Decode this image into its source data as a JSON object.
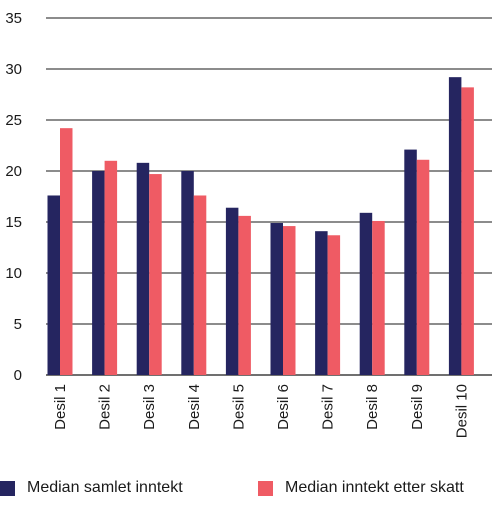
{
  "chart_data": {
    "type": "bar",
    "categories": [
      "Desil 1",
      "Desil 2",
      "Desil 3",
      "Desil 4",
      "Desil 5",
      "Desil 6",
      "Desil 7",
      "Desil 8",
      "Desil 9",
      "Desil 10"
    ],
    "series": [
      {
        "name": "Median samlet inntekt",
        "color": "#252560",
        "values": [
          17.6,
          20.0,
          20.8,
          20.0,
          16.4,
          14.9,
          14.1,
          15.9,
          22.1,
          29.2
        ]
      },
      {
        "name": "Median inntekt etter skatt",
        "color": "#ef5b64",
        "values": [
          24.2,
          21.0,
          19.7,
          17.6,
          15.6,
          14.6,
          13.7,
          15.1,
          21.1,
          28.2
        ]
      }
    ],
    "yticks": [
      "0",
      "5",
      "10",
      "15",
      "20",
      "25",
      "30",
      "35"
    ],
    "ylim": [
      0,
      35
    ],
    "grid": true,
    "gridline_color": "#1a1a1a",
    "legend_position": "bottom",
    "title": "",
    "xlabel": "",
    "ylabel": ""
  }
}
